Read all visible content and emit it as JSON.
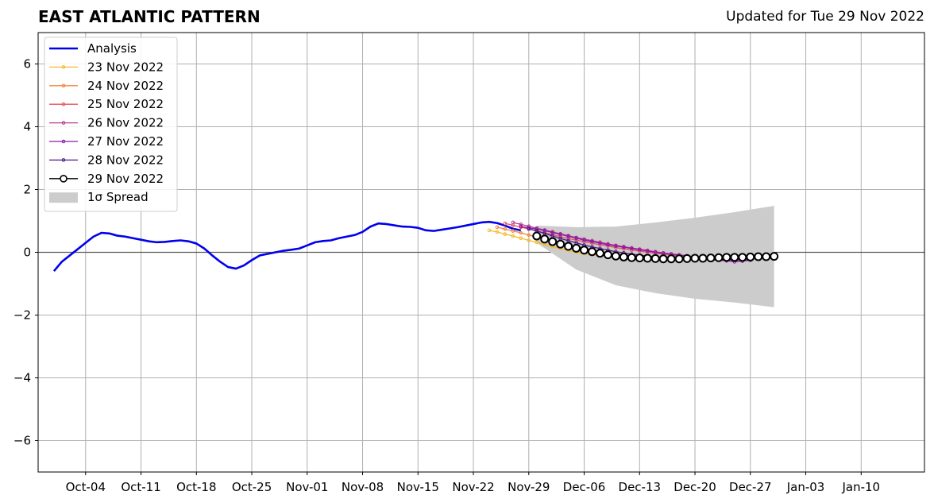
{
  "chart_data": {
    "type": "line",
    "title": "EAST ATLANTIC PATTERN",
    "subtitle": "Updated for Tue 29 Nov 2022",
    "xlabel": "",
    "ylabel": "",
    "ylim": [
      -7,
      7
    ],
    "xlim": [
      "2022-09-28",
      "2023-01-18"
    ],
    "grid": true,
    "legend_position": "top-left",
    "x_ticks": [
      "2022-10-04",
      "2022-10-11",
      "2022-10-18",
      "2022-10-25",
      "2022-11-01",
      "2022-11-08",
      "2022-11-15",
      "2022-11-22",
      "2022-11-29",
      "2022-12-06",
      "2022-12-13",
      "2022-12-20",
      "2022-12-27",
      "2023-01-03",
      "2023-01-10"
    ],
    "x_tick_labels": [
      "Oct-04",
      "Oct-11",
      "Oct-18",
      "Oct-25",
      "Nov-01",
      "Nov-08",
      "Nov-15",
      "Nov-22",
      "Nov-29",
      "Dec-06",
      "Dec-13",
      "Dec-20",
      "Dec-27",
      "Jan-03",
      "Jan-10"
    ],
    "y_ticks": [
      -6,
      -4,
      -2,
      0,
      2,
      4,
      6
    ],
    "y_tick_labels": [
      "−6",
      "−4",
      "−2",
      "0",
      "2",
      "4",
      "6"
    ],
    "analysis": {
      "name": "Analysis",
      "color": "#0000ee",
      "start": "2022-09-30",
      "values": [
        -0.6,
        -0.3,
        -0.1,
        0.1,
        0.3,
        0.5,
        0.62,
        0.6,
        0.53,
        0.5,
        0.45,
        0.4,
        0.35,
        0.32,
        0.33,
        0.36,
        0.38,
        0.35,
        0.28,
        0.12,
        -0.1,
        -0.3,
        -0.47,
        -0.52,
        -0.42,
        -0.25,
        -0.1,
        -0.05,
        0.0,
        0.05,
        0.08,
        0.12,
        0.22,
        0.32,
        0.36,
        0.38,
        0.45,
        0.5,
        0.55,
        0.65,
        0.82,
        0.92,
        0.9,
        0.86,
        0.82,
        0.81,
        0.78,
        0.7,
        0.68,
        0.72,
        0.76,
        0.8,
        0.85,
        0.9,
        0.95,
        0.97,
        0.93,
        0.85,
        0.75,
        0.7
      ]
    },
    "spread": {
      "name": "1σ Spread",
      "color": "#cccccc",
      "x": [
        "2022-11-30",
        "2022-12-05",
        "2022-12-10",
        "2022-12-15",
        "2022-12-20",
        "2022-12-25",
        "2022-12-30"
      ],
      "upper": [
        0.85,
        0.8,
        0.82,
        0.95,
        1.1,
        1.28,
        1.48
      ],
      "lower": [
        0.3,
        -0.55,
        -1.05,
        -1.3,
        -1.48,
        -1.6,
        -1.75
      ]
    },
    "series": [
      {
        "name": "23 Nov 2022",
        "color": "#f5b92e",
        "start": "2022-11-24",
        "values": [
          0.7,
          0.65,
          0.58,
          0.52,
          0.45,
          0.38,
          0.32,
          0.25,
          0.18,
          0.12,
          0.06,
          0.0,
          -0.04,
          -0.08,
          -0.1,
          -0.12,
          -0.14,
          -0.15,
          -0.16,
          -0.17,
          -0.18,
          -0.19,
          -0.2,
          -0.2,
          -0.21,
          -0.22,
          -0.22,
          -0.22,
          -0.2,
          -0.19,
          -0.18,
          -0.18,
          -0.18,
          -0.18
        ]
      },
      {
        "name": "24 Nov 2022",
        "color": "#f0843c",
        "start": "2022-11-25",
        "values": [
          0.8,
          0.74,
          0.68,
          0.62,
          0.55,
          0.48,
          0.42,
          0.36,
          0.3,
          0.24,
          0.18,
          0.12,
          0.07,
          0.02,
          -0.02,
          -0.06,
          -0.09,
          -0.11,
          -0.13,
          -0.15,
          -0.17,
          -0.19,
          -0.2,
          -0.21,
          -0.22,
          -0.23,
          -0.24,
          -0.24,
          -0.24,
          -0.23,
          -0.22,
          -0.22,
          -0.21
        ]
      },
      {
        "name": "25 Nov 2022",
        "color": "#e05660",
        "start": "2022-11-26",
        "values": [
          0.92,
          0.86,
          0.8,
          0.74,
          0.68,
          0.62,
          0.56,
          0.5,
          0.44,
          0.39,
          0.34,
          0.29,
          0.24,
          0.2,
          0.15,
          0.11,
          0.07,
          0.04,
          0.0,
          -0.03,
          -0.06,
          -0.09,
          -0.12,
          -0.15,
          -0.18,
          -0.21,
          -0.24,
          -0.26,
          -0.27,
          -0.26,
          -0.24,
          -0.22
        ]
      },
      {
        "name": "26 Nov 2022",
        "color": "#b83a8c",
        "start": "2022-11-27",
        "values": [
          0.95,
          0.89,
          0.83,
          0.77,
          0.71,
          0.65,
          0.59,
          0.53,
          0.47,
          0.42,
          0.37,
          0.32,
          0.27,
          0.22,
          0.18,
          0.14,
          0.1,
          0.06,
          0.02,
          -0.02,
          -0.05,
          -0.08,
          -0.11,
          -0.14,
          -0.17,
          -0.2,
          -0.23,
          -0.25,
          -0.26,
          -0.25,
          -0.23
        ]
      },
      {
        "name": "27 Nov 2022",
        "color": "#8a1aa6",
        "start": "2022-11-28",
        "values": [
          0.82,
          0.78,
          0.74,
          0.69,
          0.63,
          0.57,
          0.51,
          0.45,
          0.39,
          0.34,
          0.29,
          0.24,
          0.2,
          0.16,
          0.12,
          0.08,
          0.04,
          0.0,
          -0.03,
          -0.06,
          -0.09,
          -0.12,
          -0.15,
          -0.18,
          -0.21,
          -0.24,
          -0.27,
          -0.3,
          -0.28,
          -0.25
        ]
      },
      {
        "name": "28 Nov 2022",
        "color": "#4a1a8a",
        "start": "2022-11-29",
        "values": [
          0.75,
          0.68,
          0.6,
          0.52,
          0.44,
          0.37,
          0.3,
          0.23,
          0.17,
          0.12,
          0.07,
          0.02,
          -0.02,
          -0.06,
          -0.09,
          -0.12,
          -0.14,
          -0.16,
          -0.18,
          -0.2,
          -0.21,
          -0.22,
          -0.23,
          -0.24,
          -0.24,
          -0.23,
          -0.22,
          -0.2,
          -0.18
        ]
      },
      {
        "name": "29 Nov 2022",
        "color": "#000000",
        "start": "2022-11-30",
        "values": [
          0.52,
          0.42,
          0.34,
          0.26,
          0.19,
          0.13,
          0.07,
          0.02,
          -0.03,
          -0.08,
          -0.12,
          -0.15,
          -0.17,
          -0.18,
          -0.19,
          -0.2,
          -0.21,
          -0.21,
          -0.21,
          -0.2,
          -0.19,
          -0.19,
          -0.18,
          -0.17,
          -0.16,
          -0.16,
          -0.16,
          -0.15,
          -0.14,
          -0.14,
          -0.13
        ]
      }
    ]
  }
}
